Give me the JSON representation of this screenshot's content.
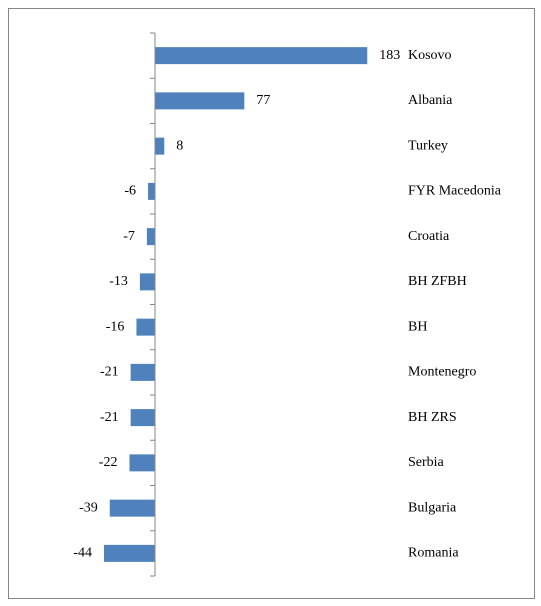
{
  "chart_data": {
    "type": "hbar",
    "categories": [
      "Kosovo",
      "Albania",
      "Turkey",
      "FYR Macedonia",
      "Croatia",
      "BH ZFBH",
      "BH",
      "Montenegro",
      "BH ZRS",
      "Serbia",
      "Bulgaria",
      "Romania"
    ],
    "values": [
      183,
      77,
      8,
      -6,
      -7,
      -13,
      -16,
      -21,
      -21,
      -22,
      -39,
      -44
    ],
    "color": "#4f81bd",
    "xlim": [
      -50,
      200
    ]
  }
}
